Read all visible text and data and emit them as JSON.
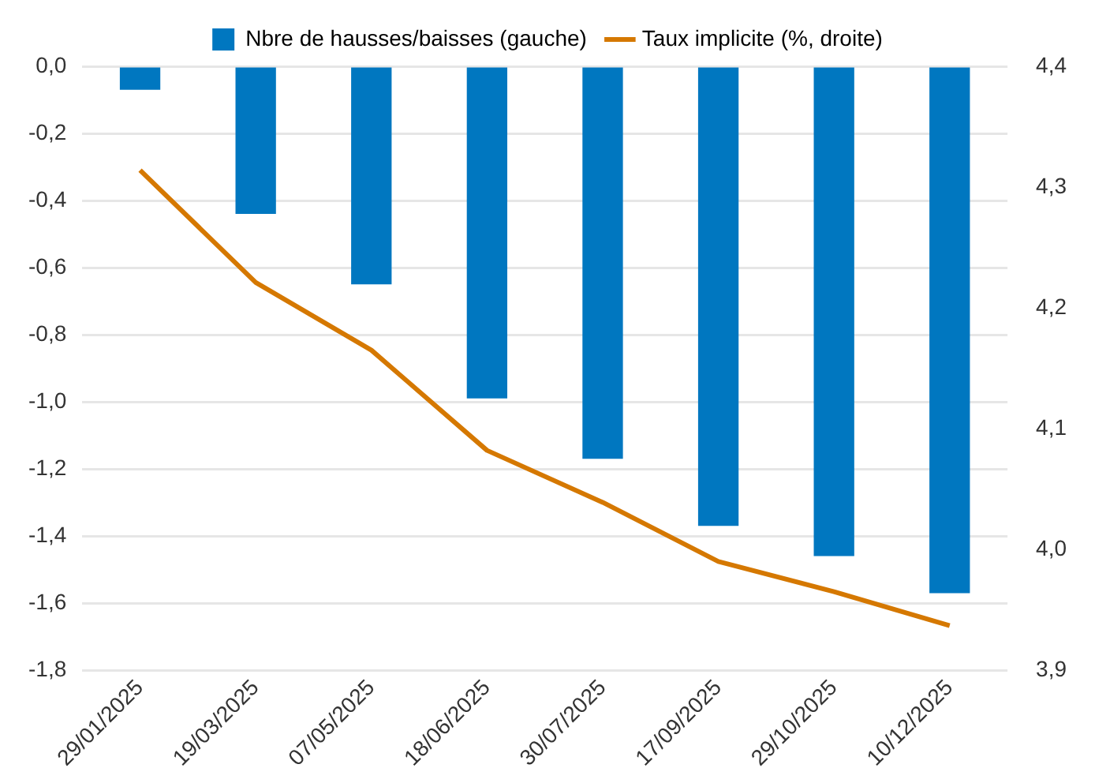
{
  "chart_data": {
    "type": "bar",
    "categories": [
      "29/01/2025",
      "19/03/2025",
      "07/05/2025",
      "18/06/2025",
      "30/07/2025",
      "17/09/2025",
      "29/10/2025",
      "10/12/2025"
    ],
    "series": [
      {
        "name": "Nbre de hausses/baisses (gauche)",
        "color": "#0077c0",
        "values": [
          -0.07,
          -0.44,
          -0.65,
          -0.99,
          -1.17,
          -1.37,
          -1.46,
          -1.57
        ]
      },
      {
        "name": "Taux implicite (%, droite)",
        "type": "line",
        "axis": "y2",
        "color": "#d57800",
        "values": [
          4.314,
          4.221,
          4.165,
          4.082,
          4.039,
          3.99,
          3.965,
          3.937
        ]
      }
    ],
    "ylim": [
      -1.8,
      0
    ],
    "yticks": [
      {
        "value": -1.8,
        "label": "-1,8"
      },
      {
        "value": -1.6,
        "label": "-1,6"
      },
      {
        "value": -1.4,
        "label": "-1,4"
      },
      {
        "value": -1.2,
        "label": "-1,2"
      },
      {
        "value": -1,
        "label": "-1,0"
      },
      {
        "value": -0.8,
        "label": "-0,8"
      },
      {
        "value": -0.6,
        "label": "-0,6"
      },
      {
        "value": -0.4,
        "label": "-0,4"
      },
      {
        "value": -0.2,
        "label": "-0,2"
      },
      {
        "value": 0,
        "label": "0,0"
      }
    ],
    "y2lim": [
      3.9,
      4.4
    ],
    "y2ticks": [
      {
        "value": 3.9,
        "label": "3,9"
      },
      {
        "value": 4,
        "label": "4,0"
      },
      {
        "value": 4.1,
        "label": "4,1"
      },
      {
        "value": 4.2,
        "label": "4,2"
      },
      {
        "value": 4.3,
        "label": "4,3"
      },
      {
        "value": 4.4,
        "label": "4,4"
      }
    ],
    "grid": "y",
    "legend": "top",
    "marker": "none",
    "line_style": "solid"
  }
}
